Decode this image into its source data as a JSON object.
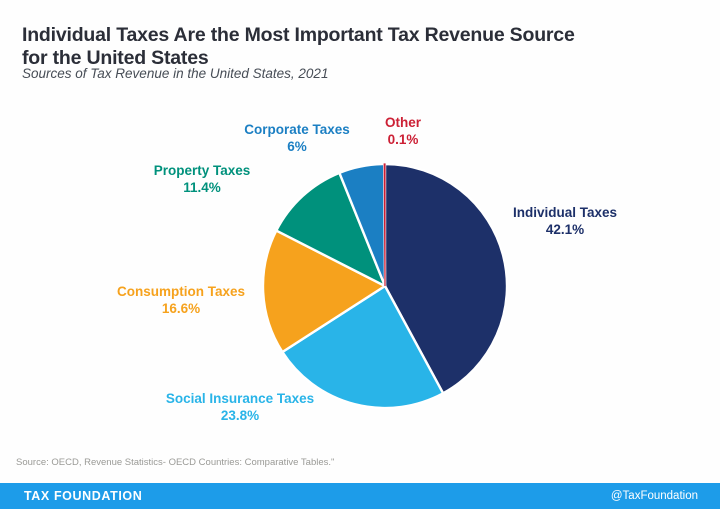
{
  "header": {
    "title": "Individual Taxes Are the Most Important Tax Revenue Source for the United States",
    "subtitle": "Sources of Tax Revenue in the United States, 2021"
  },
  "chart_data": {
    "type": "pie",
    "title": "Sources of Tax Revenue in the United States, 2021",
    "direction": "clockwise",
    "start_angle_deg": 0,
    "legend_position": "labels-around-pie",
    "slices": [
      {
        "label": "Individual Taxes",
        "value": 42.1,
        "display": "42.1%",
        "color": "#1d3069"
      },
      {
        "label": "Social Insurance Taxes",
        "value": 23.8,
        "display": "23.8%",
        "color": "#29b4e8"
      },
      {
        "label": "Consumption Taxes",
        "value": 16.6,
        "display": "16.6%",
        "color": "#f6a21d"
      },
      {
        "label": "Property Taxes",
        "value": 11.4,
        "display": "11.4%",
        "color": "#00917c"
      },
      {
        "label": "Corporate Taxes",
        "value": 6,
        "display": "6%",
        "color": "#1b7fc3"
      },
      {
        "label": "Other",
        "value": 0.1,
        "display": "0.1%",
        "color": "#cc2035"
      }
    ]
  },
  "footer": {
    "source": "Source: OECD, Revenue Statistics- OECD Countries: Comparative Tables.\"",
    "brand": "TAX FOUNDATION",
    "handle": "@TaxFoundation",
    "bar_color": "#1d9ce9"
  }
}
